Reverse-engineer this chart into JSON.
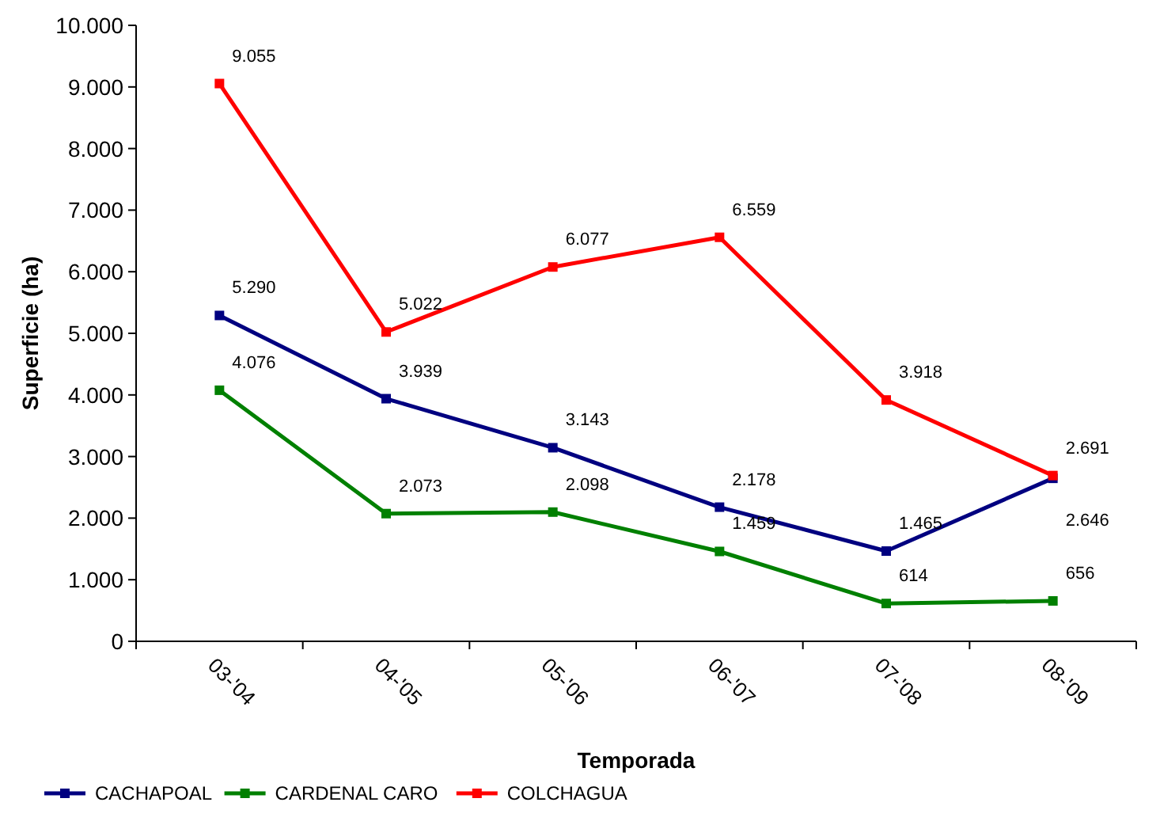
{
  "chart_data": {
    "type": "line",
    "xlabel": "Temporada",
    "ylabel": "Superficie (ha)",
    "categories": [
      "03-'04",
      "04-'05",
      "05-'06",
      "06-'07",
      "07-'08",
      "08-'09"
    ],
    "series": [
      {
        "name": "CACHAPOAL",
        "color": "#000080",
        "values": [
          5290,
          3939,
          3143,
          2178,
          1465,
          2646
        ],
        "value_labels": [
          "5.290",
          "3.939",
          "3.143",
          "2.178",
          "1.465",
          "2.646"
        ]
      },
      {
        "name": "CARDENAL CARO",
        "color": "#008000",
        "values": [
          4076,
          2073,
          2098,
          1459,
          614,
          656
        ],
        "value_labels": [
          "4.076",
          "2.073",
          "2.098",
          "1.459",
          "614",
          "656"
        ]
      },
      {
        "name": "COLCHAGUA",
        "color": "#ff0000",
        "values": [
          9055,
          5022,
          6077,
          6559,
          3918,
          2691
        ],
        "value_labels": [
          "9.055",
          "5.022",
          "6.077",
          "6.559",
          "3.918",
          "2.691"
        ]
      }
    ],
    "ylim": [
      0,
      10000
    ],
    "yticks": [
      {
        "value": 0,
        "label": "0"
      },
      {
        "value": 1000,
        "label": "1.000"
      },
      {
        "value": 2000,
        "label": "2.000"
      },
      {
        "value": 3000,
        "label": "3.000"
      },
      {
        "value": 4000,
        "label": "4.000"
      },
      {
        "value": 5000,
        "label": "5.000"
      },
      {
        "value": 6000,
        "label": "6.000"
      },
      {
        "value": 7000,
        "label": "7.000"
      },
      {
        "value": 8000,
        "label": "8.000"
      },
      {
        "value": 9000,
        "label": "9.000"
      },
      {
        "value": 10000,
        "label": "10.000"
      }
    ],
    "grid": false,
    "legend": "bottom",
    "marker": "square",
    "line_style": "solid"
  }
}
